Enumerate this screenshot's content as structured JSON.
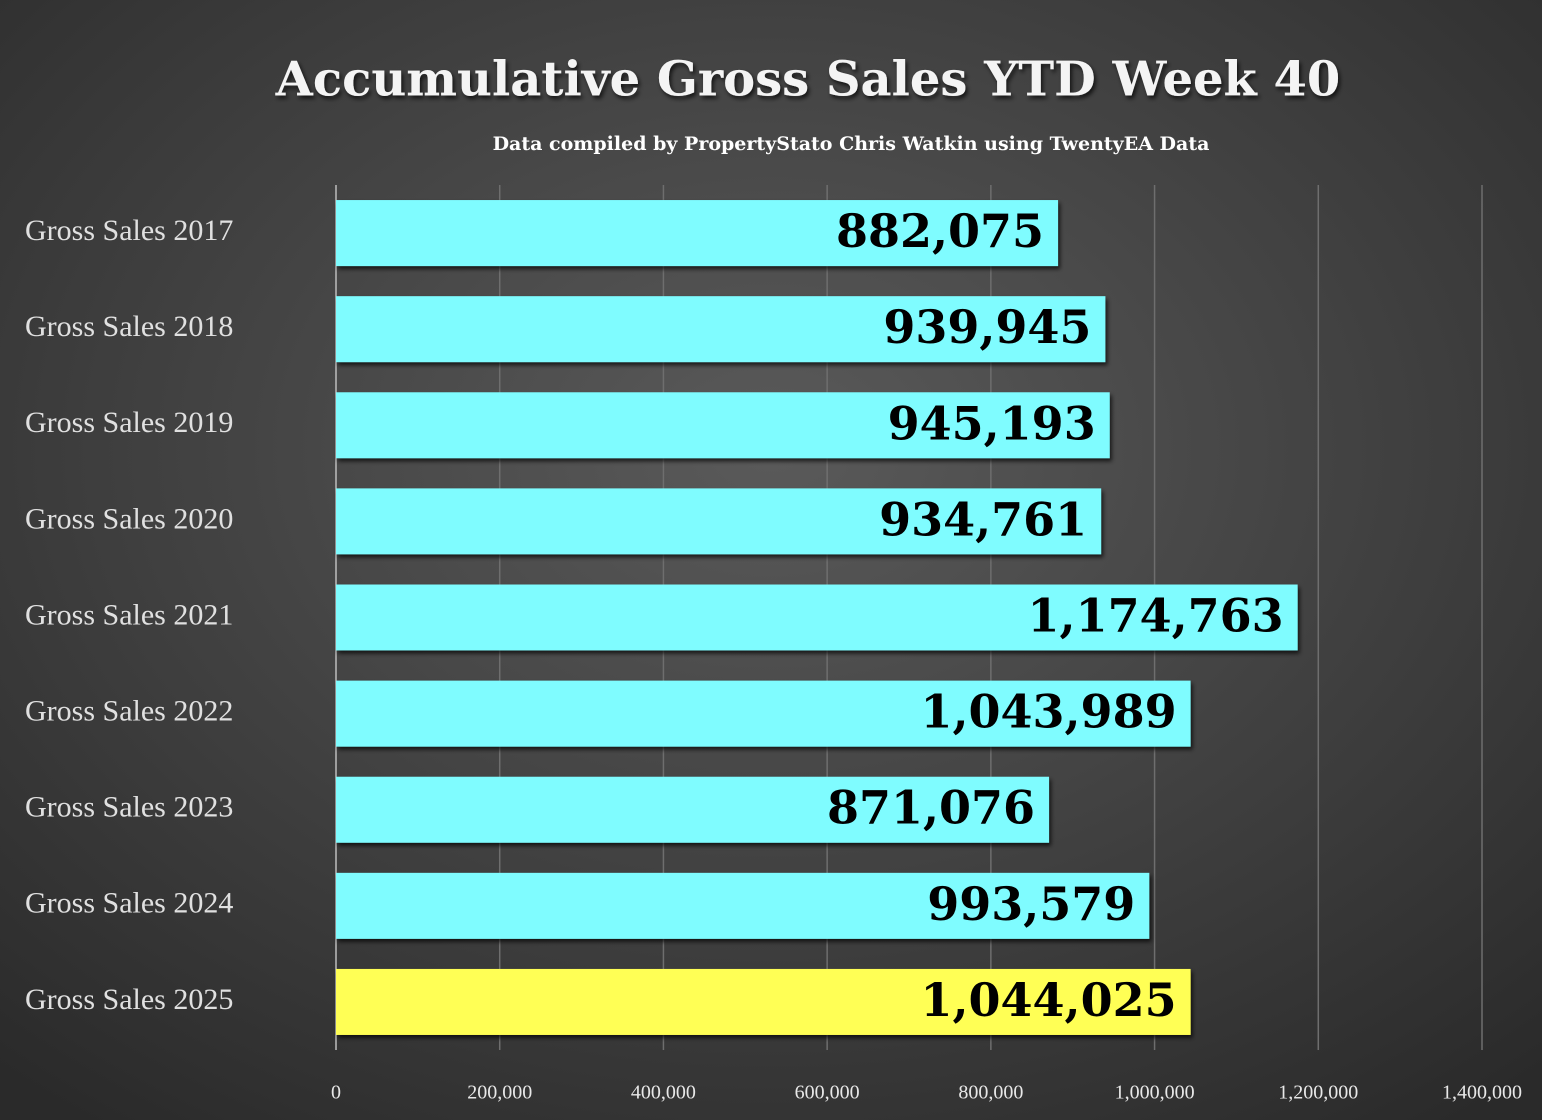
{
  "chart_data": {
    "type": "bar",
    "orientation": "horizontal",
    "title": "Accumulative Gross Sales YTD Week 40",
    "subtitle": "Data compiled by PropertyStato Chris Watkin using TwentyEA Data",
    "categories": [
      "Gross Sales 2017",
      "Gross Sales 2018",
      "Gross Sales 2019",
      "Gross Sales 2020",
      "Gross Sales 2021",
      "Gross Sales 2022",
      "Gross Sales 2023",
      "Gross Sales 2024",
      "Gross Sales 2025"
    ],
    "values": [
      882075,
      939945,
      945193,
      934761,
      1174763,
      1043989,
      871076,
      993579,
      1044025
    ],
    "value_labels": [
      "882,075",
      "939,945",
      "945,193",
      "934,761",
      "1,174,763",
      "1,043,989",
      "871,076",
      "993,579",
      "1,044,025"
    ],
    "colors": [
      "#7ffcff",
      "#7ffcff",
      "#7ffcff",
      "#7ffcff",
      "#7ffcff",
      "#7ffcff",
      "#7ffcff",
      "#7ffcff",
      "#ffff55"
    ],
    "xlim": [
      0,
      1400000
    ],
    "xticks": [
      0,
      {
        "value": 200000,
        "label": "200,000"
      },
      {
        "value": 400000,
        "label": "400,000"
      },
      {
        "value": 600000,
        "label": "600,000"
      },
      {
        "value": 800000,
        "label": "800,000"
      },
      {
        "value": 1000000,
        "label": "1,000,000"
      },
      {
        "value": 1200000,
        "label": "1,200,000"
      },
      {
        "value": 1400000,
        "label": "1,400,000"
      }
    ],
    "grid": true
  }
}
